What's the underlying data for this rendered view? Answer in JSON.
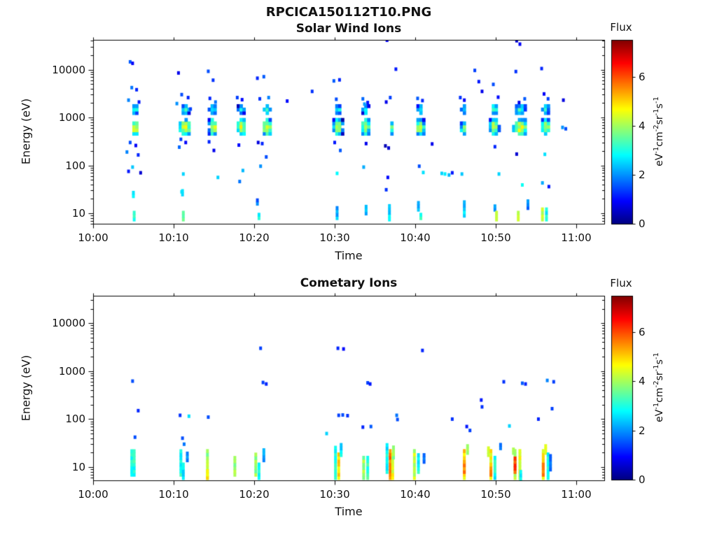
{
  "figure": {
    "title": "RPCICA150112T10.PNG",
    "colors": {
      "background": "#ffffff",
      "axis": "#000000",
      "colormap": "jet"
    }
  },
  "chart_data": [
    {
      "type": "heatmap",
      "title": "Solar Wind Ions",
      "xlabel": "Time",
      "ylabel": "Energy (eV)",
      "x_ticks": [
        "10:00",
        "10:10",
        "10:20",
        "10:30",
        "10:40",
        "10:50",
        "11:00"
      ],
      "x_tick_minutes": [
        0,
        10,
        20,
        30,
        40,
        50,
        60
      ],
      "xlim_minutes": [
        0,
        63.5
      ],
      "y_scale": "log",
      "y_ticks": [
        10,
        100,
        1000,
        10000
      ],
      "ylim_ev": [
        6,
        42000
      ],
      "colorbar": {
        "label": "Flux",
        "range": [
          0,
          7.5
        ],
        "ticks": [
          0,
          2,
          4,
          6
        ],
        "units": [
          [
            "eV",
            "-1"
          ],
          [
            "cm",
            "-2"
          ],
          [
            "sr",
            "-1"
          ],
          [
            "s",
            "-1"
          ]
        ],
        "colormap": "jet"
      },
      "clusters": [
        [
          5.2,
          1.1,
          420,
          950,
          4.4
        ],
        [
          11.4,
          1.5,
          420,
          950,
          4.4
        ],
        [
          14.9,
          1.1,
          420,
          950,
          4.4
        ],
        [
          18.4,
          1.2,
          420,
          950,
          4.4
        ],
        [
          21.6,
          1.3,
          420,
          950,
          4.4
        ],
        [
          30.4,
          1.2,
          420,
          950,
          4.4
        ],
        [
          33.8,
          1.1,
          420,
          950,
          4.4
        ],
        [
          37.0,
          0.5,
          430,
          800,
          3.6
        ],
        [
          40.6,
          1.1,
          420,
          950,
          4.4
        ],
        [
          46.0,
          0.7,
          430,
          850,
          3.6
        ],
        [
          49.8,
          1.2,
          420,
          950,
          4.4
        ],
        [
          53.0,
          1.9,
          420,
          950,
          4.4
        ],
        [
          56.2,
          1.1,
          420,
          950,
          4.4
        ],
        [
          5.2,
          0.9,
          1150,
          1900,
          3.0
        ],
        [
          11.4,
          1.1,
          1150,
          1900,
          3.0
        ],
        [
          14.9,
          1.0,
          1150,
          1900,
          2.9
        ],
        [
          18.4,
          0.8,
          1150,
          1900,
          2.9
        ],
        [
          21.6,
          0.9,
          1150,
          1900,
          3.0
        ],
        [
          30.4,
          0.9,
          1150,
          1900,
          2.9
        ],
        [
          33.8,
          0.8,
          1150,
          1900,
          2.8
        ],
        [
          40.6,
          0.8,
          1150,
          1900,
          2.9
        ],
        [
          46.0,
          0.6,
          1200,
          1800,
          2.6
        ],
        [
          49.8,
          1.0,
          1150,
          1900,
          3.0
        ],
        [
          53.0,
          1.5,
          1150,
          1900,
          3.1
        ],
        [
          56.2,
          0.9,
          1150,
          1900,
          3.0
        ]
      ],
      "points": [
        [
          4.6,
          14500,
          1.6
        ],
        [
          4.9,
          13500,
          0.9
        ],
        [
          4.8,
          4200,
          1.8
        ],
        [
          5.4,
          3800,
          1.2
        ],
        [
          4.4,
          2300,
          1.9
        ],
        [
          5.7,
          2100,
          1.1
        ],
        [
          4.6,
          300,
          1.5
        ],
        [
          5.3,
          260,
          0.9
        ],
        [
          4.2,
          190,
          1.9
        ],
        [
          5.6,
          165,
          1.2
        ],
        [
          4.9,
          92,
          2.4
        ],
        [
          4.4,
          75,
          1.1
        ],
        [
          5.9,
          70,
          0.6
        ],
        [
          10.6,
          8500,
          0.8
        ],
        [
          11.0,
          3000,
          1.5
        ],
        [
          11.8,
          2600,
          1.2
        ],
        [
          10.4,
          1950,
          2.0
        ],
        [
          12.1,
          1500,
          1.4
        ],
        [
          10.9,
          350,
          1.4
        ],
        [
          11.5,
          300,
          0.9
        ],
        [
          10.7,
          240,
          1.7
        ],
        [
          11.2,
          66,
          2.5
        ],
        [
          11.0,
          28,
          2.6
        ],
        [
          14.3,
          9200,
          1.5
        ],
        [
          14.9,
          6000,
          1.3
        ],
        [
          14.5,
          2500,
          1.2
        ],
        [
          15.2,
          2100,
          1.8
        ],
        [
          14.4,
          310,
          1.2
        ],
        [
          15.0,
          205,
          0.8
        ],
        [
          15.5,
          56,
          2.5
        ],
        [
          17.9,
          2600,
          1.4
        ],
        [
          18.5,
          2350,
          1.0
        ],
        [
          18.1,
          265,
          1.0
        ],
        [
          18.6,
          78,
          2.3
        ],
        [
          18.2,
          46,
          1.8
        ],
        [
          20.4,
          6600,
          1.2
        ],
        [
          21.2,
          7100,
          1.6
        ],
        [
          20.7,
          2450,
          1.3
        ],
        [
          21.8,
          2600,
          1.9
        ],
        [
          20.5,
          300,
          0.7
        ],
        [
          21.0,
          285,
          1.2
        ],
        [
          21.5,
          150,
          1.5
        ],
        [
          20.8,
          96,
          2.0
        ],
        [
          24.1,
          2200,
          1.0
        ],
        [
          27.2,
          3500,
          1.3
        ],
        [
          29.9,
          5800,
          1.6
        ],
        [
          30.6,
          6100,
          1.2
        ],
        [
          30.2,
          2400,
          1.5
        ],
        [
          30.0,
          300,
          1.1
        ],
        [
          30.7,
          205,
          1.6
        ],
        [
          30.3,
          68,
          2.8
        ],
        [
          33.5,
          2450,
          1.7
        ],
        [
          34.1,
          2050,
          1.1
        ],
        [
          33.7,
          1900,
          2.1
        ],
        [
          33.9,
          285,
          0.8
        ],
        [
          33.6,
          92,
          2.2
        ],
        [
          36.5,
          41000,
          0.9
        ],
        [
          37.6,
          10200,
          1.1
        ],
        [
          36.9,
          2600,
          1.4
        ],
        [
          36.4,
          2100,
          0.8
        ],
        [
          36.3,
          255,
          0.4
        ],
        [
          36.7,
          230,
          0.6
        ],
        [
          36.6,
          56,
          1.0
        ],
        [
          36.4,
          31,
          1.3
        ],
        [
          40.3,
          2500,
          1.6
        ],
        [
          40.9,
          2250,
          1.2
        ],
        [
          40.5,
          96,
          1.5
        ],
        [
          41.0,
          71,
          2.6
        ],
        [
          42.1,
          280,
          0.8
        ],
        [
          43.3,
          68,
          2.5
        ],
        [
          43.7,
          66,
          2.7
        ],
        [
          44.2,
          63,
          2.3
        ],
        [
          44.6,
          70,
          1.1
        ],
        [
          45.6,
          2600,
          1.3
        ],
        [
          46.1,
          2300,
          0.9
        ],
        [
          45.8,
          66,
          2.4
        ],
        [
          47.4,
          9600,
          1.4
        ],
        [
          47.9,
          5600,
          1.1
        ],
        [
          48.3,
          3500,
          0.8
        ],
        [
          49.7,
          4900,
          1.5
        ],
        [
          50.3,
          2650,
          1.0
        ],
        [
          49.9,
          245,
          1.2
        ],
        [
          50.4,
          66,
          2.5
        ],
        [
          52.6,
          40000,
          0.6
        ],
        [
          53.0,
          34000,
          0.9
        ],
        [
          52.5,
          9100,
          1.3
        ],
        [
          53.6,
          2450,
          1.6
        ],
        [
          52.9,
          2050,
          0.8
        ],
        [
          52.6,
          172,
          0.6
        ],
        [
          53.3,
          39,
          2.9
        ],
        [
          55.7,
          10500,
          1.2
        ],
        [
          56.0,
          3100,
          0.9
        ],
        [
          56.5,
          2450,
          1.4
        ],
        [
          56.1,
          170,
          2.6
        ],
        [
          55.8,
          43,
          2.2
        ],
        [
          56.6,
          36,
          1.1
        ],
        [
          58.3,
          620,
          2.0
        ],
        [
          58.7,
          580,
          1.5
        ],
        [
          58.4,
          2300,
          0.7
        ]
      ],
      "streaks": [
        [
          5.1,
          7.5,
          12,
          3.2
        ],
        [
          5.0,
          23,
          28,
          2.9
        ],
        [
          11.2,
          7.5,
          12,
          3.3
        ],
        [
          11.1,
          25,
          30,
          2.7
        ],
        [
          20.4,
          16,
          22,
          1.6
        ],
        [
          20.6,
          8,
          11,
          2.8
        ],
        [
          30.3,
          8,
          14,
          2.3
        ],
        [
          33.9,
          10,
          14,
          2.1
        ],
        [
          36.8,
          7.5,
          15,
          2.6
        ],
        [
          40.4,
          12,
          17,
          2.5
        ],
        [
          40.7,
          8,
          11,
          3.0
        ],
        [
          46.1,
          9,
          19,
          2.4
        ],
        [
          49.9,
          12,
          16,
          1.9
        ],
        [
          50.1,
          7.5,
          11,
          3.9
        ],
        [
          52.8,
          7.5,
          12,
          4.0
        ],
        [
          54.0,
          13,
          20,
          1.9
        ],
        [
          55.8,
          7.5,
          13,
          4.1
        ],
        [
          56.3,
          7.5,
          13,
          2.8
        ]
      ]
    },
    {
      "type": "heatmap",
      "title": "Cometary Ions",
      "xlabel": "Time",
      "ylabel": "Energy (eV)",
      "x_ticks": [
        "10:00",
        "10:10",
        "10:20",
        "10:30",
        "10:40",
        "10:50",
        "11:00"
      ],
      "x_tick_minutes": [
        0,
        10,
        20,
        30,
        40,
        50,
        60
      ],
      "xlim_minutes": [
        0,
        63.5
      ],
      "y_scale": "log",
      "y_ticks": [
        10,
        100,
        1000,
        10000
      ],
      "ylim_ev": [
        5.3,
        37000
      ],
      "colorbar": {
        "label": "Flux",
        "range": [
          0,
          7.5
        ],
        "ticks": [
          0,
          2,
          4,
          6
        ],
        "units": [
          [
            "eV",
            "-1"
          ],
          [
            "cm",
            "-2"
          ],
          [
            "sr",
            "-1"
          ],
          [
            "s",
            "-1"
          ]
        ],
        "colormap": "jet"
      },
      "clusters": [],
      "points": [
        [
          4.9,
          620,
          1.5
        ],
        [
          5.6,
          150,
          1.2
        ],
        [
          5.2,
          42,
          1.5
        ],
        [
          10.8,
          120,
          1.3
        ],
        [
          11.9,
          115,
          2.6
        ],
        [
          11.1,
          40,
          1.5
        ],
        [
          11.3,
          30,
          1.8
        ],
        [
          14.3,
          110,
          1.5
        ],
        [
          20.8,
          3000,
          1.4
        ],
        [
          21.1,
          580,
          1.4
        ],
        [
          21.5,
          540,
          1.2
        ],
        [
          29.0,
          50,
          2.5
        ],
        [
          30.4,
          3000,
          1.2
        ],
        [
          31.1,
          2900,
          1.0
        ],
        [
          30.5,
          120,
          1.4
        ],
        [
          31.0,
          122,
          1.5
        ],
        [
          31.6,
          118,
          1.3
        ],
        [
          34.1,
          570,
          1.4
        ],
        [
          34.4,
          540,
          1.1
        ],
        [
          33.5,
          68,
          1.2
        ],
        [
          34.5,
          70,
          1.6
        ],
        [
          37.7,
          120,
          1.8
        ],
        [
          37.8,
          98,
          1.5
        ],
        [
          40.9,
          2700,
          1.2
        ],
        [
          44.6,
          100,
          1.3
        ],
        [
          46.4,
          70,
          1.1
        ],
        [
          46.8,
          58,
          1.4
        ],
        [
          48.2,
          250,
          1.1
        ],
        [
          48.3,
          180,
          1.3
        ],
        [
          51.0,
          600,
          1.3
        ],
        [
          51.7,
          72,
          2.5
        ],
        [
          53.3,
          560,
          1.6
        ],
        [
          53.7,
          540,
          1.2
        ],
        [
          56.4,
          640,
          1.9
        ],
        [
          57.2,
          600,
          1.4
        ],
        [
          57.0,
          165,
          1.4
        ],
        [
          55.3,
          100,
          1.2
        ]
      ],
      "streaks": [
        [
          4.8,
          7,
          23,
          3.0
        ],
        [
          5.1,
          7,
          25,
          3.1
        ],
        [
          10.9,
          7,
          22,
          3.0
        ],
        [
          11.2,
          6,
          12,
          2.7
        ],
        [
          11.7,
          14,
          22,
          1.8
        ],
        [
          14.2,
          6,
          25,
          3.9
        ],
        [
          14.2,
          6,
          9,
          4.8
        ],
        [
          17.6,
          7,
          18,
          3.9
        ],
        [
          20.2,
          7,
          20,
          3.8
        ],
        [
          20.6,
          6,
          12,
          3.0
        ],
        [
          21.2,
          14,
          25,
          1.9
        ],
        [
          30.1,
          6,
          26,
          2.9
        ],
        [
          30.5,
          6,
          20,
          4.9
        ],
        [
          30.8,
          18,
          30,
          2.7
        ],
        [
          33.6,
          6,
          16,
          3.9
        ],
        [
          34.1,
          6,
          16,
          3.2
        ],
        [
          36.5,
          8,
          30,
          2.8
        ],
        [
          36.9,
          6,
          25,
          5.7
        ],
        [
          37.2,
          6,
          20,
          4.6
        ],
        [
          37.3,
          16,
          26,
          4.0
        ],
        [
          39.9,
          6,
          22,
          4.2
        ],
        [
          40.4,
          8,
          18,
          2.9
        ],
        [
          41.1,
          13,
          20,
          1.9
        ],
        [
          46.1,
          6,
          25,
          4.9
        ],
        [
          46.1,
          8,
          14,
          5.6
        ],
        [
          46.5,
          20,
          28,
          4.0
        ],
        [
          49.1,
          18,
          26,
          4.0
        ],
        [
          49.4,
          6,
          24,
          4.6
        ],
        [
          49.4,
          7,
          12,
          5.4
        ],
        [
          49.9,
          6,
          18,
          2.9
        ],
        [
          50.6,
          25,
          33,
          1.9
        ],
        [
          52.2,
          20,
          27,
          4.0
        ],
        [
          52.4,
          6,
          25,
          4.2
        ],
        [
          52.4,
          8,
          16,
          6.1
        ],
        [
          53.0,
          6,
          22,
          4.6
        ],
        [
          53.1,
          5.8,
          9,
          2.9
        ],
        [
          55.9,
          6,
          24,
          4.8
        ],
        [
          55.9,
          7,
          13,
          5.5
        ],
        [
          56.2,
          20,
          28,
          4.2
        ],
        [
          56.5,
          6,
          20,
          2.9
        ],
        [
          56.8,
          9,
          18,
          1.8
        ]
      ]
    }
  ]
}
